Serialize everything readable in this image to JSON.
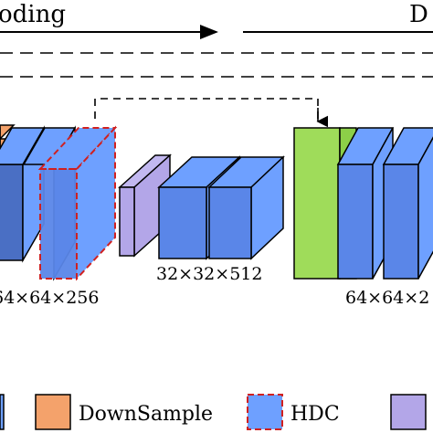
{
  "header": {
    "encoding_label": "oding",
    "decoding_label": "D"
  },
  "dimensions": {
    "left": "64×64×256",
    "middle": "32×32×512",
    "right": "64×64×2"
  },
  "legend": {
    "items": [
      {
        "label": "DownSample",
        "color": "#f4a26b"
      },
      {
        "label": "HDC",
        "color": "#6ea0ff"
      },
      {
        "label": "",
        "color": "#b3a6e8"
      }
    ]
  },
  "colors": {
    "downsample": "#f4a26b",
    "hdc": "#6ea0ff",
    "purple": "#b3a6e8",
    "green": "#9fdc5a",
    "dashed_red": "#d02020"
  }
}
